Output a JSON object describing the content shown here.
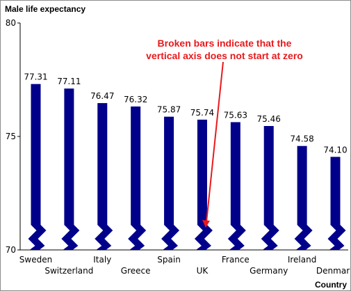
{
  "chart_data": {
    "type": "bar",
    "title": "",
    "ylabel": "Male life expectancy",
    "xlabel": "Country",
    "categories": [
      "Sweden",
      "Switzerland",
      "Italy",
      "Greece",
      "Spain",
      "UK",
      "France",
      "Germany",
      "Ireland",
      "Denmark"
    ],
    "values": [
      77.31,
      77.11,
      76.47,
      76.32,
      75.87,
      75.74,
      75.63,
      75.46,
      74.58,
      74.1
    ],
    "data_labels": [
      "77.31",
      "77.11",
      "76.47",
      "76.32",
      "75.87",
      "75.74",
      "75.63",
      "75.46",
      "74.58",
      "74.10"
    ],
    "ylim": [
      70,
      80
    ],
    "yticks": [
      "70",
      "75",
      "80"
    ],
    "broken_axis": true,
    "grid": false,
    "bar_color": "#00008b",
    "annotation": {
      "line1": "Broken bars indicate that the",
      "line2": "vertical axis does not start at zero",
      "color": "#e8191c"
    }
  }
}
